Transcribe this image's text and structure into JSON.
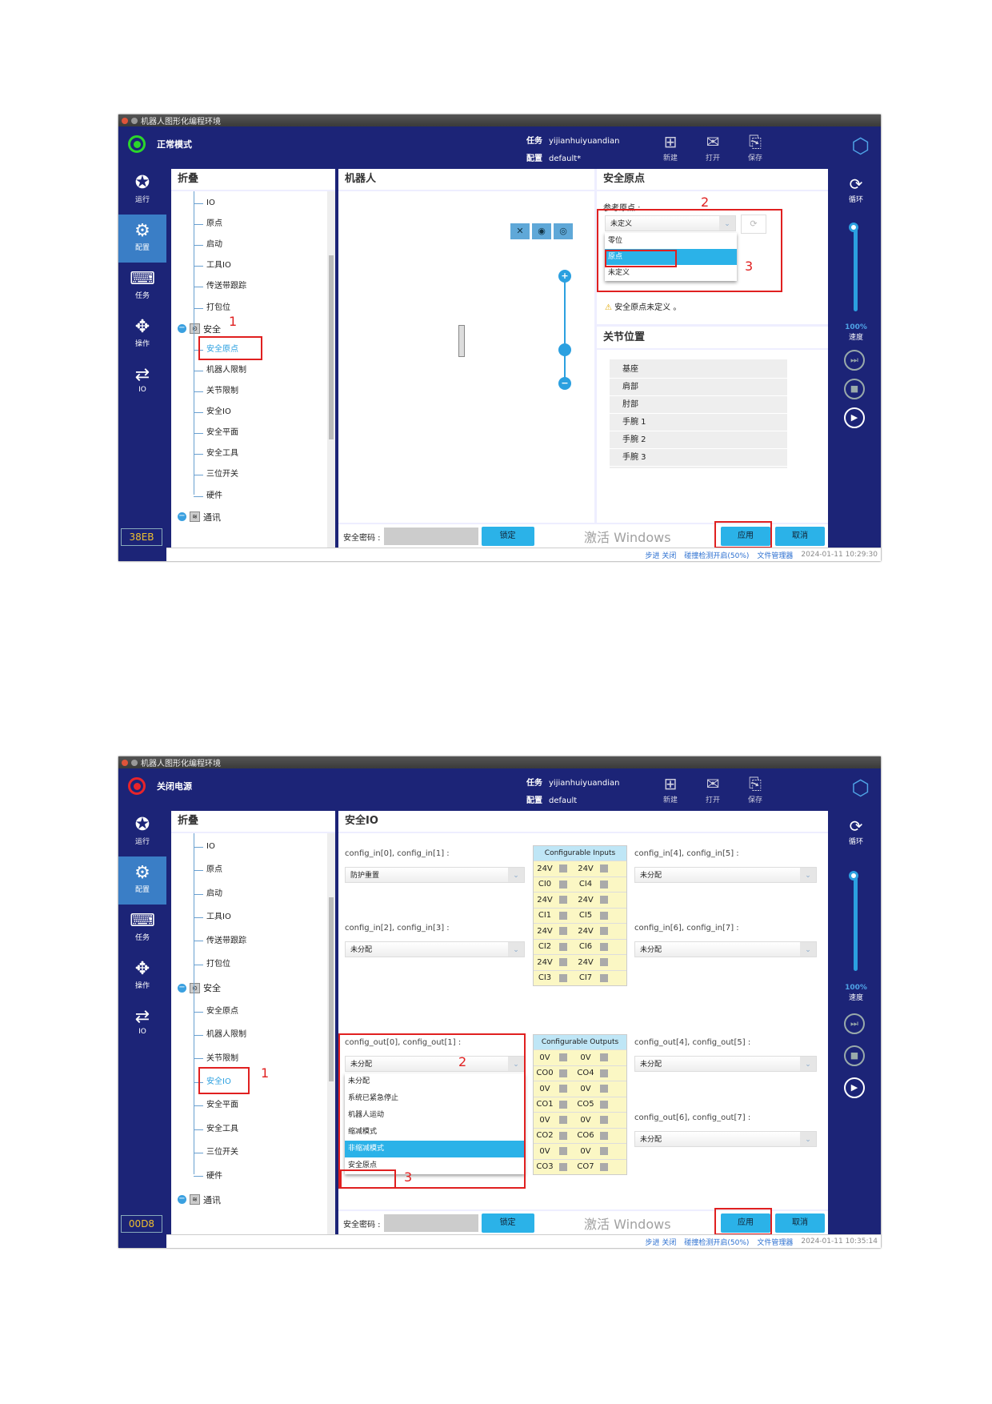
{
  "common": {
    "app_title": "机器人图形化编程环境",
    "task_label": "任务",
    "task": "yijianhuiyuandian",
    "config_label": "配置",
    "toolbar": [
      {
        "label": "新建",
        "icon": "new-file-icon"
      },
      {
        "label": "打开",
        "icon": "open-icon"
      },
      {
        "label": "保存",
        "icon": "save-icon"
      }
    ],
    "sidebar": [
      {
        "label": "运行",
        "icon": "run-icon"
      },
      {
        "label": "配置",
        "icon": "config-icon"
      },
      {
        "label": "任务",
        "icon": "task-icon"
      },
      {
        "label": "操作",
        "icon": "move-icon"
      },
      {
        "label": "IO",
        "icon": "io-icon"
      }
    ],
    "right": {
      "loop": "循环",
      "speed": "100%",
      "speed_label": "速度"
    },
    "tree_header": "折叠",
    "tree_items": [
      "IO",
      "原点",
      "启动",
      "工具IO",
      "传送带跟踪",
      "打包位"
    ],
    "safety_group": "安全",
    "safety_items": [
      "安全原点",
      "机器人限制",
      "关节限制",
      "安全IO",
      "安全平面",
      "安全工具",
      "三位开关",
      "硬件"
    ],
    "comm_group": "通讯",
    "password_label": "安全密码 :",
    "lock": "锁定",
    "apply": "应用",
    "cancel": "取消",
    "step": "步进 关闭",
    "collision": "碰撞检测开启(50%)",
    "file_manager": "文件管理器",
    "activate": "激活 Windows",
    "accent": "#2bb2e8",
    "header_bg": "#1c2477"
  },
  "win1": {
    "mode": "正常模式",
    "config": "default*",
    "code": "38EB",
    "time": "2024-01-11 10:29:30",
    "robot_title": "机器人",
    "origin_title": "安全原点",
    "ref_label": "参考原点 :",
    "ref_value": "未定义",
    "ref_options": [
      "零位",
      "原点",
      "未定义"
    ],
    "ref_selected": 1,
    "warning": "安全原点未定义 。",
    "joint_title": "关节位置",
    "joints": [
      "基座",
      "肩部",
      "肘部",
      "手腕 1",
      "手腕 2",
      "手腕 3"
    ],
    "annotations": [
      "1",
      "2",
      "3"
    ]
  },
  "win2": {
    "mode": "关闭电源",
    "config": "default",
    "code": "00D8",
    "time": "2024-01-11 10:35:14",
    "io_title": "安全IO",
    "in_labels": [
      "config_in[0], config_in[1] :",
      "config_in[2], config_in[3] :",
      "config_in[4], config_in[5] :",
      "config_in[6], config_in[7] :"
    ],
    "in_values": [
      "防护重置",
      "未分配",
      "未分配",
      "未分配"
    ],
    "out_labels": [
      "config_out[0], config_out[1] :",
      "config_out[4], config_out[5] :",
      "config_out[6], config_out[7] :"
    ],
    "out_values": [
      "未分配",
      "未分配",
      "未分配"
    ],
    "inputs_header": "Configurable Inputs",
    "inputs": [
      [
        "24V",
        "24V"
      ],
      [
        "CI0",
        "CI4"
      ],
      [
        "24V",
        "24V"
      ],
      [
        "CI1",
        "CI5"
      ],
      [
        "24V",
        "24V"
      ],
      [
        "CI2",
        "CI6"
      ],
      [
        "24V",
        "24V"
      ],
      [
        "CI3",
        "CI7"
      ]
    ],
    "outputs_header": "Configurable Outputs",
    "outputs": [
      [
        "0V",
        "0V"
      ],
      [
        "CO0",
        "CO4"
      ],
      [
        "0V",
        "0V"
      ],
      [
        "CO1",
        "CO5"
      ],
      [
        "0V",
        "0V"
      ],
      [
        "CO2",
        "CO6"
      ],
      [
        "0V",
        "0V"
      ],
      [
        "CO3",
        "CO7"
      ]
    ],
    "out_options": [
      "未分配",
      "系统已紧急停止",
      "机器人运动",
      "缩减模式",
      "非缩减模式",
      "安全原点"
    ],
    "out_highlight": 4,
    "annotations": [
      "1",
      "2",
      "3"
    ]
  }
}
